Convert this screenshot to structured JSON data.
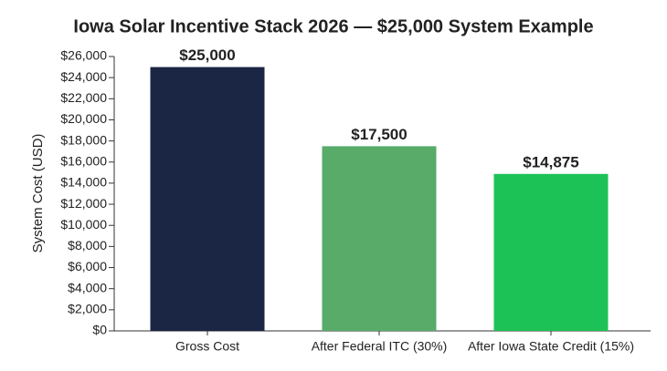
{
  "chart_data": {
    "type": "bar",
    "title": "Iowa Solar Incentive Stack 2026 — $25,000 System Example",
    "y_label": "System Cost (USD)",
    "categories": [
      "Gross Cost",
      "After Federal ITC (30%)",
      "After Iowa State Credit (15%)"
    ],
    "values": [
      25000,
      17500,
      14875
    ],
    "value_labels": [
      "$25,000",
      "$17,500",
      "$14,875"
    ],
    "colors": [
      "#1b2644",
      "#59ab6a",
      "#1dc257"
    ],
    "ylim": [
      0,
      26000
    ],
    "yticks": [
      {
        "value": 0,
        "label": "$0"
      },
      {
        "value": 2000,
        "label": "$2,000"
      },
      {
        "value": 4000,
        "label": "$4,000"
      },
      {
        "value": 6000,
        "label": "$6,000"
      },
      {
        "value": 8000,
        "label": "$8,000"
      },
      {
        "value": 10000,
        "label": "$10,000"
      },
      {
        "value": 12000,
        "label": "$12,000"
      },
      {
        "value": 14000,
        "label": "$14,000"
      },
      {
        "value": 16000,
        "label": "$16,000"
      },
      {
        "value": 18000,
        "label": "$18,000"
      },
      {
        "value": 20000,
        "label": "$20,000"
      },
      {
        "value": 22000,
        "label": "$22,000"
      },
      {
        "value": 24000,
        "label": "$24,000"
      },
      {
        "value": 26000,
        "label": "$26,000"
      }
    ],
    "grid": false
  }
}
